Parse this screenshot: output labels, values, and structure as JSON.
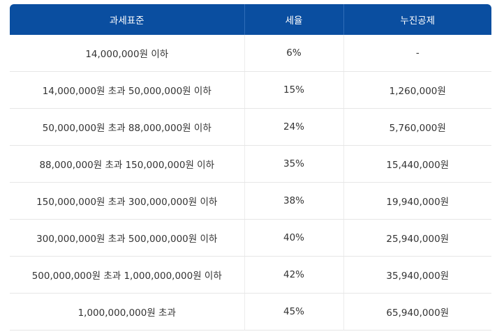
{
  "table": {
    "headers": [
      "과세표준",
      "세율",
      "누진공제"
    ],
    "rows": [
      [
        "14,000,000원 이하",
        "6%",
        "-"
      ],
      [
        "14,000,000원 초과 50,000,000원 이하",
        "15%",
        "1,260,000원"
      ],
      [
        "50,000,000원 초과 88,000,000원 이하",
        "24%",
        "5,760,000원"
      ],
      [
        "88,000,000원 초과 150,000,000원 이하",
        "35%",
        "15,440,000원"
      ],
      [
        "150,000,000원 초과 300,000,000원 이하",
        "38%",
        "19,940,000원"
      ],
      [
        "300,000,000원 초과 500,000,000원 이하",
        "40%",
        "25,940,000원"
      ],
      [
        "500,000,000원 초과 1,000,000,000원 이하",
        "42%",
        "35,940,000원"
      ],
      [
        "1,000,000,000원 초과",
        "45%",
        "65,940,000원"
      ]
    ]
  },
  "colors": {
    "header_bg": "#0a4ea0",
    "header_text": "#ffffff",
    "body_text": "#333333",
    "row_border": "#e6e6e6"
  }
}
